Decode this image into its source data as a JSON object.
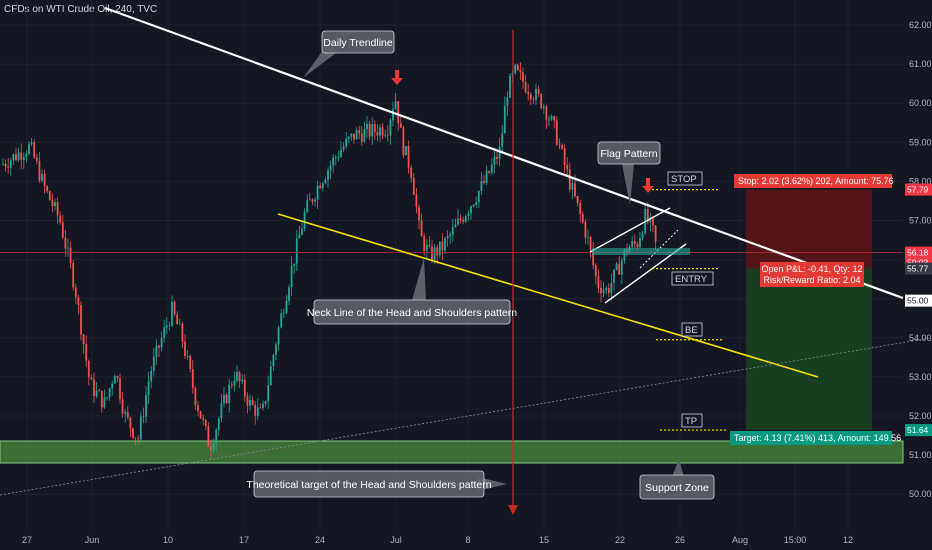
{
  "header": {
    "symbol": "CFDs on WTI Crude Oil, 240, TVC"
  },
  "chart_data": {
    "type": "candlestick",
    "y_axis": {
      "ticks": [
        "62.00",
        "61.00",
        "60.00",
        "59.00",
        "58.00",
        "57.00",
        "56.00",
        "55.00",
        "54.00",
        "53.00",
        "52.00",
        "51.00",
        "50.00"
      ]
    },
    "x_axis": {
      "ticks": [
        "27",
        "Jun",
        "10",
        "17",
        "24",
        "Jul",
        "8",
        "15",
        "22",
        "26",
        "Aug",
        "15:00",
        "12"
      ]
    },
    "price_labels": [
      {
        "text": "57.79",
        "price": 57.79,
        "color": "#f23645"
      },
      {
        "text": "56.18",
        "price": 56.18,
        "color": "#f23645"
      },
      {
        "text": "59:03",
        "price": 55.92,
        "color": "#f23645"
      },
      {
        "text": "55.77",
        "price": 55.77,
        "color": "#363a45"
      },
      {
        "text": "55.00",
        "price": 54.95,
        "color": "#ffffff"
      },
      {
        "text": "51.64",
        "price": 51.64,
        "color": "#089981"
      }
    ],
    "annotations": {
      "daily_trendline": "Daily Trendline",
      "flag_pattern": "Flag Pattern",
      "neckline": "Neck Line of the Head and Shoulders pattern",
      "theoretical_target": "Theoretical target of the Head and Shoulders pattern",
      "support_zone": "Support Zone",
      "stop": "STOP",
      "entry": "ENTRY",
      "be": "BE",
      "tp": "TP"
    },
    "position": {
      "stop_text": "Stop: 2.02 (3.62%) 202, Amount: 75.76",
      "open_pnl": "Open P&L: -0.41, Qty: 12",
      "rr": "Risk/Reward Ratio: 2.04",
      "target_text": "Target: 4.13 (7.41%) 413, Amount: 149.56",
      "entry": 55.77,
      "stop": 57.79,
      "target": 51.64
    },
    "price_path": [
      [
        0,
        58.4
      ],
      [
        30,
        58.9
      ],
      [
        45,
        57.8
      ],
      [
        60,
        57.0
      ],
      [
        75,
        55.3
      ],
      [
        90,
        52.8
      ],
      [
        105,
        52.3
      ],
      [
        115,
        53.2
      ],
      [
        125,
        52.0
      ],
      [
        138,
        51.4
      ],
      [
        150,
        53.1
      ],
      [
        162,
        54.0
      ],
      [
        172,
        54.7
      ],
      [
        182,
        54.0
      ],
      [
        195,
        52.5
      ],
      [
        210,
        51.2
      ],
      [
        222,
        52.2
      ],
      [
        235,
        53.1
      ],
      [
        250,
        52.3
      ],
      [
        262,
        52.0
      ],
      [
        275,
        53.8
      ],
      [
        290,
        55.6
      ],
      [
        305,
        57.2
      ],
      [
        320,
        58.0
      ],
      [
        340,
        58.8
      ],
      [
        355,
        59.2
      ],
      [
        375,
        59.3
      ],
      [
        388,
        59.4
      ],
      [
        395,
        60.2
      ],
      [
        402,
        59.0
      ],
      [
        412,
        58.2
      ],
      [
        420,
        56.6
      ],
      [
        430,
        56.1
      ],
      [
        442,
        56.3
      ],
      [
        455,
        56.8
      ],
      [
        470,
        57.4
      ],
      [
        485,
        58.0
      ],
      [
        500,
        58.8
      ],
      [
        507,
        60.3
      ],
      [
        515,
        60.8
      ],
      [
        528,
        60.4
      ],
      [
        543,
        60.0
      ],
      [
        555,
        59.3
      ],
      [
        567,
        58.2
      ],
      [
        578,
        57.3
      ],
      [
        587,
        56.6
      ],
      [
        597,
        55.4
      ],
      [
        607,
        55.2
      ],
      [
        617,
        55.7
      ],
      [
        627,
        56.3
      ],
      [
        637,
        56.4
      ],
      [
        645,
        57.1
      ],
      [
        652,
        56.8
      ],
      [
        658,
        56.1
      ]
    ]
  }
}
